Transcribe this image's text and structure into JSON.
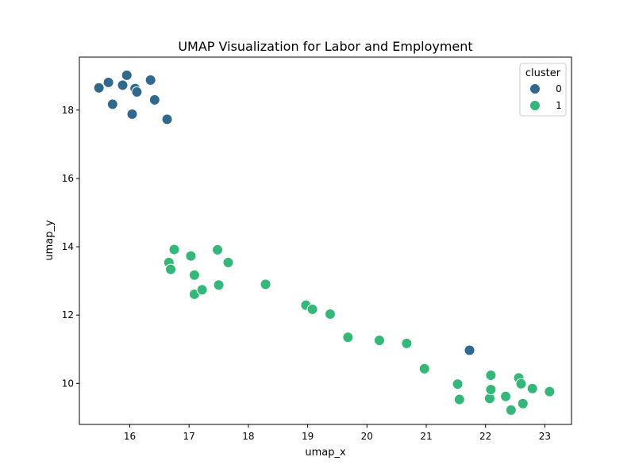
{
  "chart_data": {
    "type": "scatter",
    "title": "UMAP Visualization for Labor and Employment",
    "xlabel": "umap_x",
    "ylabel": "umap_y",
    "xlim": [
      15.15,
      23.45
    ],
    "ylim": [
      8.8,
      19.55
    ],
    "xticks": [
      16,
      17,
      18,
      19,
      20,
      21,
      22,
      23
    ],
    "yticks": [
      10,
      12,
      14,
      16,
      18
    ],
    "grid": false,
    "legend": {
      "title": "cluster",
      "position": "top-right",
      "entries": [
        {
          "label": "0",
          "color": "#31688e"
        },
        {
          "label": "1",
          "color": "#35b779"
        }
      ]
    },
    "series": [
      {
        "name": "0",
        "color": "#31688e",
        "points": [
          [
            15.48,
            18.65
          ],
          [
            15.64,
            18.81
          ],
          [
            15.71,
            18.17
          ],
          [
            15.88,
            18.73
          ],
          [
            15.95,
            19.02
          ],
          [
            16.04,
            17.88
          ],
          [
            16.09,
            18.63
          ],
          [
            16.12,
            18.53
          ],
          [
            16.35,
            18.88
          ],
          [
            16.42,
            18.3
          ],
          [
            16.63,
            17.73
          ],
          [
            21.73,
            10.97
          ]
        ]
      },
      {
        "name": "1",
        "color": "#35b779",
        "points": [
          [
            16.66,
            13.54
          ],
          [
            16.69,
            13.34
          ],
          [
            16.75,
            13.92
          ],
          [
            17.03,
            13.73
          ],
          [
            17.09,
            13.17
          ],
          [
            17.09,
            12.61
          ],
          [
            17.22,
            12.74
          ],
          [
            17.48,
            13.91
          ],
          [
            17.5,
            12.88
          ],
          [
            17.66,
            13.54
          ],
          [
            18.29,
            12.9
          ],
          [
            18.97,
            12.29
          ],
          [
            19.08,
            12.17
          ],
          [
            19.38,
            12.03
          ],
          [
            19.68,
            11.35
          ],
          [
            20.21,
            11.26
          ],
          [
            20.67,
            11.17
          ],
          [
            20.97,
            10.43
          ],
          [
            21.53,
            9.98
          ],
          [
            21.56,
            9.53
          ],
          [
            22.07,
            9.56
          ],
          [
            22.09,
            10.24
          ],
          [
            22.09,
            9.82
          ],
          [
            22.34,
            9.62
          ],
          [
            22.43,
            9.22
          ],
          [
            22.56,
            10.16
          ],
          [
            22.6,
            9.99
          ],
          [
            22.63,
            9.41
          ],
          [
            22.79,
            9.85
          ],
          [
            23.08,
            9.76
          ]
        ]
      }
    ]
  }
}
